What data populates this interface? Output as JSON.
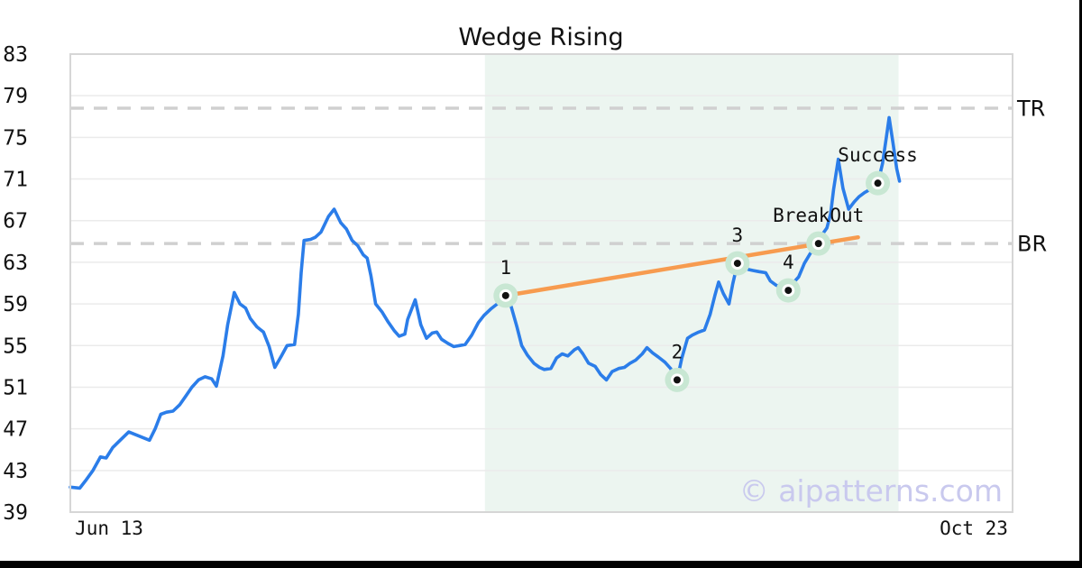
{
  "title": "Wedge Rising",
  "watermark": "© aipatterns.com",
  "chart_data": {
    "type": "line",
    "title": "Wedge Rising",
    "xlabel": "",
    "ylabel": "",
    "x_tick_left": "Jun 13",
    "x_tick_right": "Oct 23",
    "ylim": [
      39,
      83
    ],
    "y_ticks": [
      83,
      79,
      75,
      71,
      67,
      63,
      59,
      55,
      51,
      47,
      43,
      39
    ],
    "grid": "horizontal",
    "levels": [
      {
        "id": "tr",
        "label": "TR",
        "value": 77.8
      },
      {
        "id": "br",
        "label": "BR",
        "value": 64.8
      }
    ],
    "pattern_zone": {
      "x_start": 0.44,
      "x_end": 0.879
    },
    "trendline": {
      "x1": 0.462,
      "y1": 59.8,
      "x2": 0.836,
      "y2": 65.4
    },
    "annotations": [
      {
        "label": "1",
        "x": 0.462,
        "y": 59.8
      },
      {
        "label": "2",
        "x": 0.644,
        "y": 51.7
      },
      {
        "label": "3",
        "x": 0.708,
        "y": 62.9
      },
      {
        "label": "4",
        "x": 0.762,
        "y": 60.3
      },
      {
        "label": "BreakOut",
        "x": 0.794,
        "y": 64.8
      },
      {
        "label": "Success",
        "x": 0.857,
        "y": 70.6
      }
    ],
    "series": [
      {
        "name": "price",
        "points": [
          [
            0.0,
            41.4
          ],
          [
            0.01,
            41.3
          ],
          [
            0.016,
            42.0
          ],
          [
            0.024,
            43.0
          ],
          [
            0.032,
            44.3
          ],
          [
            0.038,
            44.2
          ],
          [
            0.045,
            45.2
          ],
          [
            0.054,
            46.0
          ],
          [
            0.062,
            46.7
          ],
          [
            0.073,
            46.3
          ],
          [
            0.084,
            45.9
          ],
          [
            0.09,
            47.0
          ],
          [
            0.096,
            48.4
          ],
          [
            0.102,
            48.6
          ],
          [
            0.109,
            48.7
          ],
          [
            0.116,
            49.3
          ],
          [
            0.123,
            50.2
          ],
          [
            0.129,
            51.0
          ],
          [
            0.136,
            51.7
          ],
          [
            0.143,
            52.0
          ],
          [
            0.15,
            51.8
          ],
          [
            0.155,
            51.1
          ],
          [
            0.162,
            54.0
          ],
          [
            0.167,
            57.0
          ],
          [
            0.174,
            60.1
          ],
          [
            0.18,
            59.0
          ],
          [
            0.186,
            58.6
          ],
          [
            0.191,
            57.6
          ],
          [
            0.198,
            56.8
          ],
          [
            0.205,
            56.3
          ],
          [
            0.211,
            54.9
          ],
          [
            0.217,
            52.9
          ],
          [
            0.224,
            54.0
          ],
          [
            0.23,
            55.0
          ],
          [
            0.238,
            55.1
          ],
          [
            0.242,
            58.0
          ],
          [
            0.245,
            62.0
          ],
          [
            0.248,
            65.1
          ],
          [
            0.255,
            65.2
          ],
          [
            0.26,
            65.4
          ],
          [
            0.266,
            65.9
          ],
          [
            0.274,
            67.4
          ],
          [
            0.28,
            68.1
          ],
          [
            0.287,
            66.8
          ],
          [
            0.293,
            66.2
          ],
          [
            0.299,
            65.1
          ],
          [
            0.305,
            64.6
          ],
          [
            0.311,
            63.7
          ],
          [
            0.315,
            63.4
          ],
          [
            0.319,
            61.7
          ],
          [
            0.324,
            59.0
          ],
          [
            0.331,
            58.2
          ],
          [
            0.337,
            57.3
          ],
          [
            0.344,
            56.4
          ],
          [
            0.349,
            55.9
          ],
          [
            0.355,
            56.1
          ],
          [
            0.358,
            57.5
          ],
          [
            0.366,
            59.4
          ],
          [
            0.372,
            57.0
          ],
          [
            0.378,
            55.7
          ],
          [
            0.384,
            56.2
          ],
          [
            0.389,
            56.3
          ],
          [
            0.394,
            55.6
          ],
          [
            0.401,
            55.2
          ],
          [
            0.407,
            54.9
          ],
          [
            0.413,
            55.0
          ],
          [
            0.419,
            55.1
          ],
          [
            0.426,
            56.0
          ],
          [
            0.433,
            57.2
          ],
          [
            0.439,
            57.9
          ],
          [
            0.446,
            58.5
          ],
          [
            0.453,
            59.0
          ],
          [
            0.457,
            59.4
          ],
          [
            0.462,
            59.8
          ],
          [
            0.468,
            58.7
          ],
          [
            0.474,
            56.8
          ],
          [
            0.479,
            55.0
          ],
          [
            0.485,
            54.1
          ],
          [
            0.492,
            53.3
          ],
          [
            0.498,
            52.9
          ],
          [
            0.503,
            52.7
          ],
          [
            0.51,
            52.8
          ],
          [
            0.516,
            53.8
          ],
          [
            0.522,
            54.2
          ],
          [
            0.528,
            54.0
          ],
          [
            0.535,
            54.6
          ],
          [
            0.539,
            54.8
          ],
          [
            0.544,
            54.2
          ],
          [
            0.55,
            53.3
          ],
          [
            0.557,
            53.0
          ],
          [
            0.563,
            52.2
          ],
          [
            0.569,
            51.7
          ],
          [
            0.575,
            52.5
          ],
          [
            0.582,
            52.8
          ],
          [
            0.588,
            52.9
          ],
          [
            0.594,
            53.3
          ],
          [
            0.6,
            53.6
          ],
          [
            0.607,
            54.2
          ],
          [
            0.612,
            54.8
          ],
          [
            0.618,
            54.3
          ],
          [
            0.624,
            53.9
          ],
          [
            0.631,
            53.4
          ],
          [
            0.637,
            52.8
          ],
          [
            0.644,
            51.7
          ],
          [
            0.649,
            53.8
          ],
          [
            0.655,
            55.7
          ],
          [
            0.66,
            56.0
          ],
          [
            0.667,
            56.3
          ],
          [
            0.673,
            56.5
          ],
          [
            0.679,
            58.0
          ],
          [
            0.684,
            59.8
          ],
          [
            0.688,
            61.1
          ],
          [
            0.693,
            60.0
          ],
          [
            0.699,
            59.0
          ],
          [
            0.703,
            60.9
          ],
          [
            0.708,
            62.9
          ],
          [
            0.714,
            62.6
          ],
          [
            0.72,
            62.3
          ],
          [
            0.725,
            62.2
          ],
          [
            0.731,
            62.1
          ],
          [
            0.738,
            62.0
          ],
          [
            0.743,
            61.2
          ],
          [
            0.749,
            60.8
          ],
          [
            0.756,
            60.5
          ],
          [
            0.762,
            60.3
          ],
          [
            0.767,
            61.0
          ],
          [
            0.773,
            61.6
          ],
          [
            0.779,
            62.9
          ],
          [
            0.785,
            63.8
          ],
          [
            0.789,
            64.3
          ],
          [
            0.794,
            64.8
          ],
          [
            0.799,
            65.8
          ],
          [
            0.803,
            66.3
          ],
          [
            0.807,
            67.7
          ],
          [
            0.81,
            70.0
          ],
          [
            0.815,
            72.9
          ],
          [
            0.82,
            70.1
          ],
          [
            0.826,
            68.1
          ],
          [
            0.832,
            68.8
          ],
          [
            0.837,
            69.3
          ],
          [
            0.843,
            69.7
          ],
          [
            0.849,
            70.0
          ],
          [
            0.854,
            70.3
          ],
          [
            0.857,
            70.6
          ],
          [
            0.862,
            72.5
          ],
          [
            0.866,
            75.0
          ],
          [
            0.869,
            76.9
          ],
          [
            0.873,
            74.5
          ],
          [
            0.877,
            72.0
          ],
          [
            0.88,
            70.8
          ]
        ]
      }
    ]
  },
  "colors": {
    "price_line": "#2b7de9",
    "trendline": "#f79b4f",
    "zone_fill": "#ecf5f0",
    "marker_ring": "#c8e7d3",
    "marker_dot": "#111111",
    "level_dash": "#d0d0d0",
    "grid": "#ebebeb",
    "plot_border": "#d6d6d6",
    "text": "#111111",
    "watermark": "#c9c9ee",
    "frame_bar": "#000000"
  }
}
